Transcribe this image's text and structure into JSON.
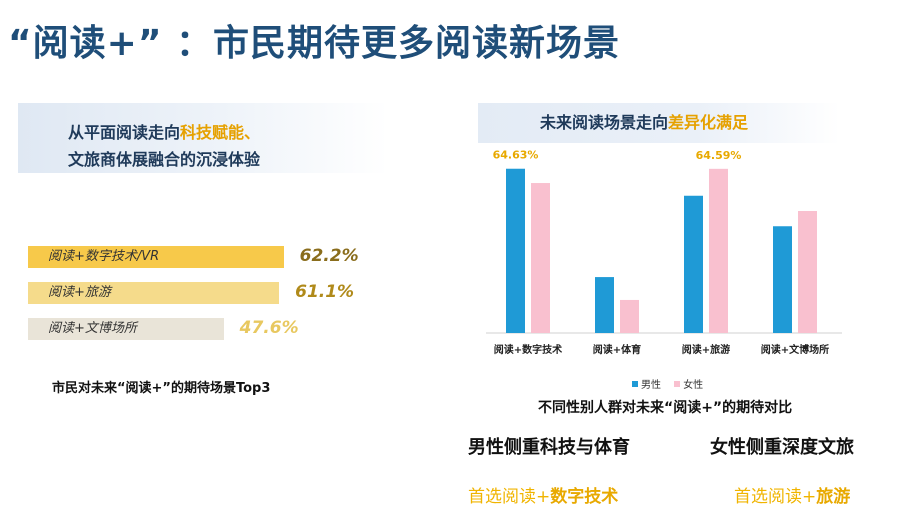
{
  "title": "“阅读+” ：市民期待更多阅读新场景",
  "left": {
    "banner_prefix": "从平面阅读走向",
    "banner_highlight": "科技赋能、",
    "banner_line2": "文旅商体展融合的沉浸体验",
    "caption": "市民对未来“阅读+”的期待场景Top3",
    "top3": [
      {
        "label": "阅读+数字技术/VR",
        "value": "62.2%",
        "pct": 62.2,
        "color": "#f7c94a",
        "value_color": "#8a6d1c"
      },
      {
        "label": "阅读+旅游",
        "value": "61.1%",
        "pct": 61.1,
        "color": "#f5db8b",
        "value_color": "#b08a1a"
      },
      {
        "label": "阅读+文博场所",
        "value": "47.6%",
        "pct": 47.6,
        "color": "#e9e4d8",
        "value_color": "#e8c860"
      }
    ]
  },
  "right": {
    "banner_prefix": "未来阅读场景走向",
    "banner_highlight": "差异化满足",
    "caption": "不同性别人群对未来“阅读+”的期待对比"
  },
  "chart_data": {
    "type": "bar",
    "title": "",
    "categories": [
      "阅读+数字技术",
      "阅读+体育",
      "阅读+旅游",
      "阅读+文博场所"
    ],
    "series": [
      {
        "name": "男性",
        "color": "#1f9ad6",
        "values": [
          64.63,
          22,
          54,
          42
        ]
      },
      {
        "name": "女性",
        "color": "#f9c0cf",
        "values": [
          59,
          13,
          64.59,
          48
        ]
      }
    ],
    "data_labels": [
      {
        "series": 0,
        "index": 0,
        "text": "64.63%"
      },
      {
        "series": 1,
        "index": 2,
        "text": "64.59%"
      }
    ],
    "ylim": [
      0,
      72
    ],
    "grid": false,
    "legend": "bottom"
  },
  "summary": {
    "male_head": "男性侧重科技与体育",
    "male_sub_prefix": "首选阅读+",
    "male_sub_highlight": "数字技术",
    "female_head": "女性侧重深度文旅",
    "female_sub_prefix": "首选阅读+",
    "female_sub_highlight": "旅游"
  }
}
